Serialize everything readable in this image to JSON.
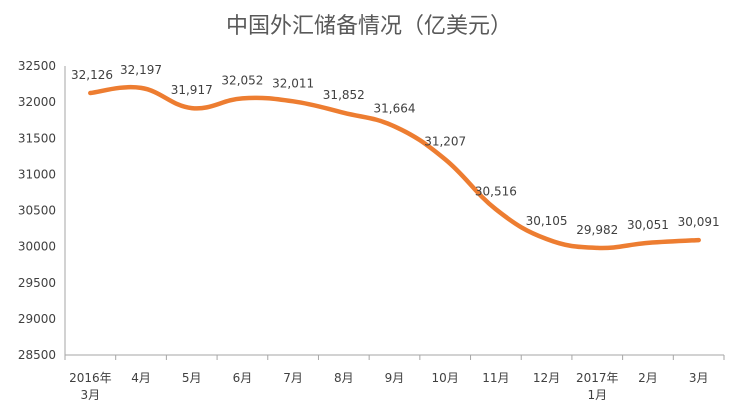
{
  "chart_data": {
    "type": "line",
    "title": "中国外汇储备情况（亿美元）",
    "categories": [
      [
        "2016年",
        "3月"
      ],
      [
        "4月"
      ],
      [
        "5月"
      ],
      [
        "6月"
      ],
      [
        "7月"
      ],
      [
        "8月"
      ],
      [
        "9月"
      ],
      [
        "10月"
      ],
      [
        "11月"
      ],
      [
        "12月"
      ],
      [
        "2017年",
        "1月"
      ],
      [
        "2月"
      ],
      [
        "3月"
      ]
    ],
    "series": [
      {
        "values": [
          32126,
          32197,
          31917,
          32052,
          32011,
          31852,
          31664,
          31207,
          30516,
          30105,
          29982,
          30051,
          30091
        ],
        "color": "#ed7d31",
        "smooth": true
      }
    ],
    "data_labels": [
      "32,126",
      "32,197",
      "31,917",
      "32,052",
      "32,011",
      "31,852",
      "31,664",
      "31,207",
      "30,516",
      "30,105",
      "29,982",
      "30,051",
      "30,091"
    ],
    "ylim": [
      28500,
      32500
    ],
    "yticks": [
      "28500",
      "29000",
      "29500",
      "30000",
      "30500",
      "31000",
      "31500",
      "32000",
      "32500"
    ],
    "grid": false,
    "legend": "none"
  }
}
